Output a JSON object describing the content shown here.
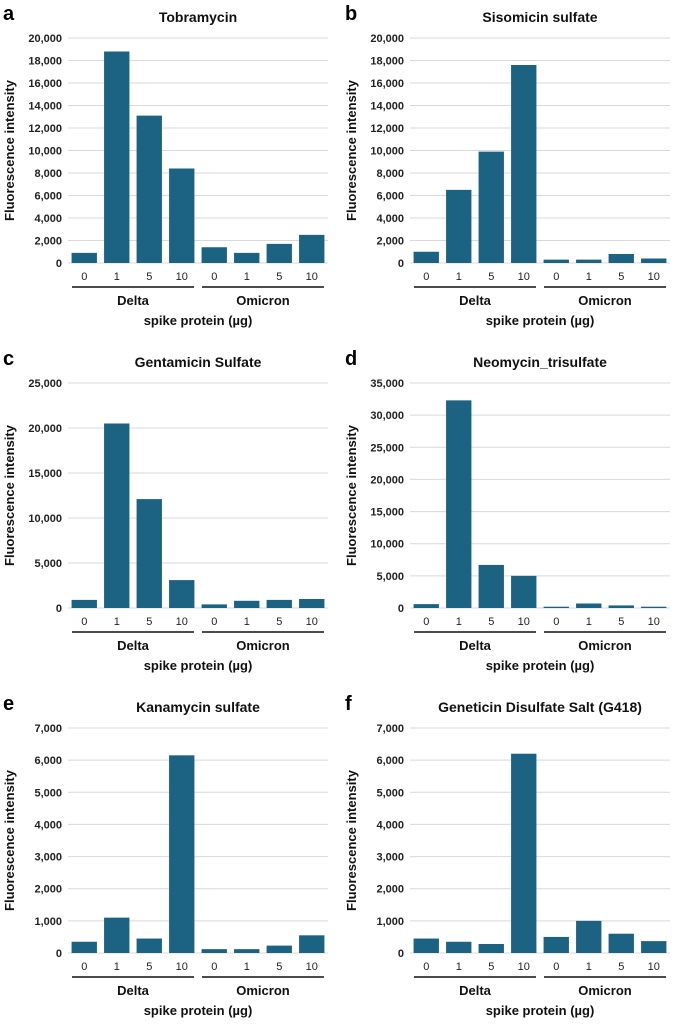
{
  "chart_data": [
    {
      "letter": "a",
      "type": "bar",
      "title": "Tobramycin",
      "ylabel": "Fluorescence intensity",
      "xlabel": "spike protein (µg)",
      "groups": [
        "Delta",
        "Omicron"
      ],
      "categories": [
        "0",
        "1",
        "5",
        "10",
        "0",
        "1",
        "5",
        "10"
      ],
      "values": [
        900,
        18800,
        13100,
        8400,
        1400,
        900,
        1700,
        2500
      ],
      "ylim": [
        0,
        20000
      ],
      "yticks": [
        "0",
        "2,000",
        "4,000",
        "6,000",
        "8,000",
        "10,000",
        "12,000",
        "14,000",
        "16,000",
        "18,000",
        "20,000"
      ],
      "color": "#1b6283"
    },
    {
      "letter": "b",
      "type": "bar",
      "title": "Sisomicin sulfate",
      "ylabel": "Fluorescence intensity",
      "xlabel": "spike protein (µg)",
      "groups": [
        "Delta",
        "Omicron"
      ],
      "categories": [
        "0",
        "1",
        "5",
        "10",
        "0",
        "1",
        "5",
        "10"
      ],
      "values": [
        1000,
        6500,
        9900,
        17600,
        300,
        300,
        800,
        400
      ],
      "ylim": [
        0,
        20000
      ],
      "yticks": [
        "0",
        "2,000",
        "4,000",
        "6,000",
        "8,000",
        "10,000",
        "12,000",
        "14,000",
        "16,000",
        "18,000",
        "20,000"
      ],
      "color": "#1b6283"
    },
    {
      "letter": "c",
      "type": "bar",
      "title": "Gentamicin Sulfate",
      "ylabel": "Fluorescence intensity",
      "xlabel": "spike protein (µg)",
      "groups": [
        "Delta",
        "Omicron"
      ],
      "categories": [
        "0",
        "1",
        "5",
        "10",
        "0",
        "1",
        "5",
        "10"
      ],
      "values": [
        900,
        20500,
        12100,
        3100,
        400,
        800,
        900,
        1000
      ],
      "ylim": [
        0,
        25000
      ],
      "yticks": [
        "0",
        "5,000",
        "10,000",
        "15,000",
        "20,000",
        "25,000"
      ],
      "color": "#1b6283"
    },
    {
      "letter": "d",
      "type": "bar",
      "title": "Neomycin_trisulfate",
      "ylabel": "Fluorescence intensity",
      "xlabel": "spike protein (µg)",
      "groups": [
        "Delta",
        "Omicron"
      ],
      "categories": [
        "0",
        "1",
        "5",
        "10",
        "0",
        "1",
        "5",
        "10"
      ],
      "values": [
        600,
        32300,
        6700,
        5000,
        200,
        700,
        400,
        200
      ],
      "ylim": [
        0,
        35000
      ],
      "yticks": [
        "0",
        "5,000",
        "10,000",
        "15,000",
        "20,000",
        "25,000",
        "30,000",
        "35,000"
      ],
      "color": "#1b6283"
    },
    {
      "letter": "e",
      "type": "bar",
      "title": "Kanamycin sulfate",
      "ylabel": "Fluorescence intensity",
      "xlabel": "spike protein (µg)",
      "groups": [
        "Delta",
        "Omicron"
      ],
      "categories": [
        "0",
        "1",
        "5",
        "10",
        "0",
        "1",
        "5",
        "10"
      ],
      "values": [
        350,
        1100,
        450,
        6150,
        120,
        120,
        230,
        550
      ],
      "ylim": [
        0,
        7000
      ],
      "yticks": [
        "0",
        "1,000",
        "2,000",
        "3,000",
        "4,000",
        "5,000",
        "6,000",
        "7,000"
      ],
      "color": "#1b6283"
    },
    {
      "letter": "f",
      "type": "bar",
      "title": "Geneticin Disulfate Salt (G418)",
      "ylabel": "Fluorescence intensity",
      "xlabel": "spike protein (µg)",
      "groups": [
        "Delta",
        "Omicron"
      ],
      "categories": [
        "0",
        "1",
        "5",
        "10",
        "0",
        "1",
        "5",
        "10"
      ],
      "values": [
        450,
        350,
        280,
        6200,
        500,
        1000,
        600,
        370
      ],
      "ylim": [
        0,
        7000
      ],
      "yticks": [
        "0",
        "1,000",
        "2,000",
        "3,000",
        "4,000",
        "5,000",
        "6,000",
        "7,000"
      ],
      "color": "#1b6283"
    }
  ]
}
